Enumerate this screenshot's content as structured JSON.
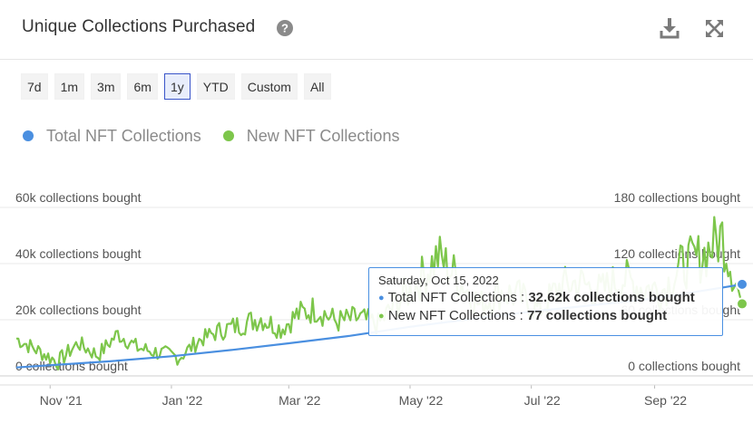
{
  "header": {
    "title": "Unique Collections Purchased",
    "help_icon": "question-circle-icon",
    "download_icon": "download-icon",
    "expand_icon": "expand-icon"
  },
  "range_buttons": [
    {
      "label": "7d",
      "active": false
    },
    {
      "label": "1m",
      "active": false
    },
    {
      "label": "3m",
      "active": false
    },
    {
      "label": "6m",
      "active": false
    },
    {
      "label": "1y",
      "active": true
    },
    {
      "label": "YTD",
      "active": false
    },
    {
      "label": "Custom",
      "active": false
    },
    {
      "label": "All",
      "active": false
    }
  ],
  "colors": {
    "total": "#4a8fe0",
    "new": "#7dc64b",
    "grid": "#e8e8e8",
    "text": "#555555"
  },
  "chart_data": {
    "type": "line",
    "left_axis": {
      "min": 0,
      "max": 60000,
      "ticks": [
        0,
        20000,
        40000,
        60000
      ],
      "tick_labels": [
        "0 collections bought",
        "20k collections bought",
        "40k collections bought",
        "60k collections bought"
      ]
    },
    "right_axis": {
      "min": 0,
      "max": 180,
      "ticks": [
        0,
        60,
        120,
        180
      ],
      "tick_labels": [
        "0 collections bought",
        "60 collections bought",
        "120 collections bought",
        "180 collections bought"
      ]
    },
    "x_axis": {
      "start": "2021-10-15",
      "end": "2022-10-15",
      "ticks": [
        "2021-11-01",
        "2022-01-01",
        "2022-03-01",
        "2022-05-01",
        "2022-07-01",
        "2022-09-01"
      ],
      "tick_labels": [
        "Nov '21",
        "Jan '22",
        "Mar '22",
        "May '22",
        "Jul '22",
        "Sep '22"
      ]
    },
    "series": [
      {
        "name": "Total NFT Collections",
        "axis": "left",
        "x": [
          "2021-10-15",
          "2021-12-01",
          "2022-01-01",
          "2022-02-01",
          "2022-03-01",
          "2022-04-01",
          "2022-05-01",
          "2022-06-01",
          "2022-07-01",
          "2022-08-01",
          "2022-09-01",
          "2022-10-01",
          "2022-10-15"
        ],
        "values": [
          3000,
          5200,
          7000,
          9300,
          11600,
          14300,
          17500,
          20300,
          22900,
          25200,
          27600,
          31000,
          32620
        ]
      },
      {
        "name": "New NFT Collections",
        "axis": "right",
        "x": [
          "2021-10-15",
          "2021-10-25",
          "2021-11-05",
          "2021-11-15",
          "2021-11-25",
          "2021-12-05",
          "2021-12-15",
          "2021-12-25",
          "2022-01-05",
          "2022-01-15",
          "2022-01-25",
          "2022-02-05",
          "2022-02-15",
          "2022-02-25",
          "2022-03-05",
          "2022-03-15",
          "2022-03-25",
          "2022-04-05",
          "2022-04-15",
          "2022-04-25",
          "2022-05-05",
          "2022-05-15",
          "2022-05-25",
          "2022-06-05",
          "2022-06-15",
          "2022-06-25",
          "2022-07-05",
          "2022-07-15",
          "2022-07-25",
          "2022-08-05",
          "2022-08-15",
          "2022-08-25",
          "2022-09-05",
          "2022-09-15",
          "2022-09-25",
          "2022-10-05",
          "2022-10-15"
        ],
        "values": [
          40,
          28,
          15,
          35,
          22,
          45,
          30,
          25,
          20,
          38,
          48,
          55,
          62,
          50,
          65,
          72,
          58,
          62,
          55,
          80,
          100,
          128,
          105,
          75,
          90,
          85,
          70,
          95,
          100,
          90,
          105,
          95,
          92,
          118,
          128,
          150,
          77
        ]
      }
    ]
  },
  "tooltip": {
    "date": "Saturday, Oct 15, 2022",
    "total_label": "Total NFT Collections : ",
    "total_value": "32.62k collections bought",
    "new_label": "New NFT Collections : ",
    "new_value": "77 collections bought"
  }
}
